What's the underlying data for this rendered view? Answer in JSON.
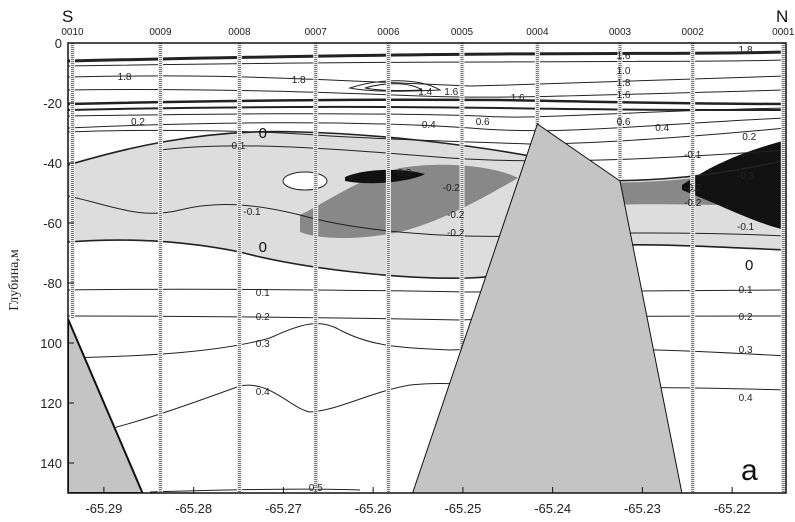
{
  "chart_data": {
    "type": "contour",
    "title": "",
    "xlabel": "",
    "ylabel": "Глубина,м",
    "panel_label": "a",
    "direction_left": "S",
    "direction_right": "N",
    "xlim": [
      -65.294,
      -65.214
    ],
    "ylim": [
      150,
      0
    ],
    "x_ticks": [
      -65.29,
      -65.28,
      -65.27,
      -65.26,
      -65.25,
      -65.24,
      -65.23,
      -65.22
    ],
    "x_tick_labels": [
      "-65.29",
      "-65.28",
      "-65.27",
      "-65.26",
      "-65.25",
      "-65.24",
      "-65.23",
      "-65.22"
    ],
    "y_ticks": [
      0,
      20,
      40,
      60,
      80,
      100,
      120,
      140
    ],
    "y_tick_labels": [
      "0",
      "-20",
      "-40",
      "-60",
      "-80",
      "100",
      "120",
      "140"
    ],
    "stations": [
      {
        "id": "0010",
        "x": -65.2935,
        "bottom_depth": 92
      },
      {
        "id": "0009",
        "x": -65.2837,
        "bottom_depth": 150
      },
      {
        "id": "0008",
        "x": -65.2749,
        "bottom_depth": 150
      },
      {
        "id": "0007",
        "x": -65.2664,
        "bottom_depth": 150
      },
      {
        "id": "0006",
        "x": -65.2583,
        "bottom_depth": 150
      },
      {
        "id": "0005",
        "x": -65.2501,
        "bottom_depth": 150
      },
      {
        "id": "0004",
        "x": -65.2417,
        "bottom_depth": 28
      },
      {
        "id": "0003",
        "x": -65.2325,
        "bottom_depth": 45
      },
      {
        "id": "0002",
        "x": -65.2244,
        "bottom_depth": 150
      },
      {
        "id": "0001",
        "x": -65.2143,
        "bottom_depth": 150
      }
    ],
    "bathymetry": {
      "left_slope": [
        [
          -65.294,
          92
        ],
        [
          -65.2857,
          150
        ]
      ],
      "central_ridge": [
        [
          -65.2556,
          150
        ],
        [
          -65.2417,
          27
        ],
        [
          -65.2325,
          46
        ],
        [
          -65.2256,
          150
        ]
      ]
    },
    "shading": [
      {
        "range": "< -0.3",
        "color": "#111111"
      },
      {
        "range": "-0.3 to -0.2",
        "color": "#888888"
      },
      {
        "range": "-0.2 to 0",
        "color": "#dddddd"
      }
    ],
    "contour_labels": [
      {
        "text": "1.6",
        "x": -65.2321,
        "y": 4
      },
      {
        "text": "1.8",
        "x": -65.2185,
        "y": 2
      },
      {
        "text": "1.8",
        "x": -65.2877,
        "y": 11
      },
      {
        "text": "1.8",
        "x": -65.2683,
        "y": 12
      },
      {
        "text": "1.0",
        "x": -65.2321,
        "y": 9
      },
      {
        "text": "1.8",
        "x": -65.2321,
        "y": 13
      },
      {
        "text": "1.4",
        "x": -65.2542,
        "y": 16
      },
      {
        "text": "1.6",
        "x": -65.2513,
        "y": 16
      },
      {
        "text": "1.6",
        "x": -65.2321,
        "y": 17
      },
      {
        "text": "1.6",
        "x": -65.2439,
        "y": 18
      },
      {
        "text": "0.2",
        "x": -65.2862,
        "y": 26
      },
      {
        "text": "0.4",
        "x": -65.2538,
        "y": 27
      },
      {
        "text": "0.6",
        "x": -65.2478,
        "y": 26
      },
      {
        "text": "0.6",
        "x": -65.2321,
        "y": 26
      },
      {
        "text": "0.4",
        "x": -65.2278,
        "y": 28
      },
      {
        "text": "0.2",
        "x": -65.2181,
        "y": 31
      },
      {
        "text": "-0.1",
        "x": -65.2752,
        "y": 34
      },
      {
        "text": "-0.1",
        "x": -65.2244,
        "y": 37
      },
      {
        "text": "-0.3",
        "x": -65.2567,
        "y": 43
      },
      {
        "text": "-0.2",
        "x": -65.2513,
        "y": 48
      },
      {
        "text": "-0.2",
        "x": -65.2244,
        "y": 48
      },
      {
        "text": "-0.2",
        "x": -65.2244,
        "y": 53
      },
      {
        "text": "-0.3",
        "x": -65.2185,
        "y": 44
      },
      {
        "text": "-0.1",
        "x": -65.2735,
        "y": 56
      },
      {
        "text": "-0.2",
        "x": -65.2508,
        "y": 57
      },
      {
        "text": "-0.2",
        "x": -65.2508,
        "y": 63
      },
      {
        "text": "-0.1",
        "x": -65.2185,
        "y": 61
      },
      {
        "text": "0.1",
        "x": -65.2723,
        "y": 83
      },
      {
        "text": "0.1",
        "x": -65.2185,
        "y": 82
      },
      {
        "text": "0.2",
        "x": -65.2723,
        "y": 91
      },
      {
        "text": "0.2",
        "x": -65.2185,
        "y": 91
      },
      {
        "text": "0.3",
        "x": -65.2723,
        "y": 100
      },
      {
        "text": "0.3",
        "x": -65.2185,
        "y": 102
      },
      {
        "text": "0.4",
        "x": -65.2723,
        "y": 116
      },
      {
        "text": "0.4",
        "x": -65.2185,
        "y": 118
      },
      {
        "text": "0.5",
        "x": -65.2664,
        "y": 148
      }
    ],
    "zero_labels": [
      {
        "text": "0",
        "x": -65.2723,
        "y": 30
      },
      {
        "text": "0",
        "x": -65.2723,
        "y": 68
      },
      {
        "text": "0",
        "x": -65.2181,
        "y": 74
      }
    ],
    "grid": false,
    "legend": "none"
  }
}
